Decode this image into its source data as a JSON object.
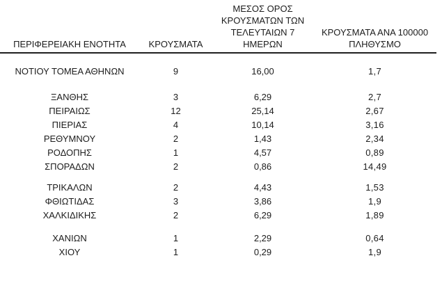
{
  "page": {
    "background": "#ffffff",
    "text_color": "#1c1c1c",
    "rule_color": "#1f1f1f"
  },
  "table": {
    "headers": {
      "region": "ΠΕΡΙΦΕΡΕΙΑΚΗ ΕΝΟΤΗΤΑ",
      "cases": "ΚΡΟΥΣΜΑΤΑ",
      "avg7days": "ΜΕΣΟΣ ΟΡΟΣ\nΚΡΟΥΣΜΑΤΩΝ ΤΩΝ\nΤΕΛΕΥΤΑΙΩΝ 7 ΗΜΕΡΩΝ",
      "per100k": "ΚΡΟΥΣΜΑΤΑ ΑΝΑ 100000\nΠΛΗΘΥΣΜΟ"
    },
    "rows": [
      {
        "region": "ΝΟΤΙΟΥ ΤΟΜΕΑ ΑΘΗΝΩΝ",
        "cases": "9",
        "avg7days": "16,00",
        "per100k": "1,7"
      },
      {
        "region": "ΞΑΝΘΗΣ",
        "cases": "3",
        "avg7days": "6,29",
        "per100k": "2,7"
      },
      {
        "region": "ΠΕΙΡΑΙΩΣ",
        "cases": "12",
        "avg7days": "25,14",
        "per100k": "2,67"
      },
      {
        "region": "ΠΙΕΡΙΑΣ",
        "cases": "4",
        "avg7days": "10,14",
        "per100k": "3,16"
      },
      {
        "region": "ΡΕΘΥΜΝΟΥ",
        "cases": "2",
        "avg7days": "1,43",
        "per100k": "2,34"
      },
      {
        "region": "ΡΟΔΟΠΗΣ",
        "cases": "1",
        "avg7days": "4,57",
        "per100k": "0,89"
      },
      {
        "region": "ΣΠΟΡΑΔΩΝ",
        "cases": "2",
        "avg7days": "0,86",
        "per100k": "14,49"
      },
      {
        "region": "ΤΡΙΚΑΛΩΝ",
        "cases": "2",
        "avg7days": "4,43",
        "per100k": "1,53"
      },
      {
        "region": "ΦΘΙΩΤΙΔΑΣ",
        "cases": "3",
        "avg7days": "3,86",
        "per100k": "1,9"
      },
      {
        "region": "ΧΑΛΚΙΔΙΚΗΣ",
        "cases": "2",
        "avg7days": "6,29",
        "per100k": "1,89"
      },
      {
        "region": "ΧΑΝΙΩΝ",
        "cases": "1",
        "avg7days": "2,29",
        "per100k": "0,64"
      },
      {
        "region": "ΧΙΟΥ",
        "cases": "1",
        "avg7days": "0,29",
        "per100k": "1,9"
      }
    ]
  }
}
